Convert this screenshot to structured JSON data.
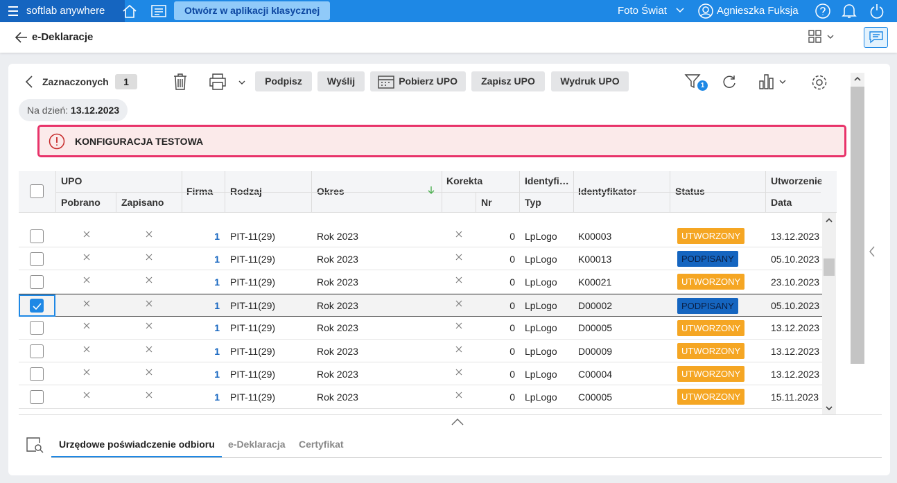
{
  "topbar": {
    "app_name": "softlab anywhere",
    "open_button": "Otwórz w aplikacji klasycznej",
    "company": "Foto Świat",
    "user": "Agnieszka Fuksja"
  },
  "subheader": {
    "title": "e-Deklaracje"
  },
  "toolbar": {
    "selected_label": "Zaznaczonych",
    "selected_count": "1",
    "buttons": [
      "Podpisz",
      "Wyślij",
      "Pobierz UPO",
      "Zapisz UPO",
      "Wydruk UPO"
    ],
    "filter_badge": "1"
  },
  "date_chip": {
    "label": "Na dzień:",
    "value": "13.12.2023"
  },
  "alert": {
    "text": "KONFIGURACJA TESTOWA"
  },
  "table": {
    "headers": {
      "upo": "UPO",
      "pobrano": "Pobrano",
      "zapisano": "Zapisano",
      "firma": "Firma",
      "rodzaj": "Rodzaj",
      "okres": "Okres",
      "korekta": "Korekta",
      "nr": "Nr",
      "identyfi": "Identyfi…",
      "typ": "Typ",
      "identyfikator": "Identyfikator",
      "status": "Status",
      "utworzenie": "Utworzenie",
      "data": "Data"
    },
    "rows": [
      {
        "firma": "1",
        "rodzaj": "PIT-11(29)",
        "okres": "Rok 2023",
        "nr": "0",
        "typ": "LpLogo",
        "identyfikator": "K00003",
        "status": "UTWORZONY",
        "status_color": "#f5a623",
        "data": "13.12.2023",
        "selected": false
      },
      {
        "firma": "1",
        "rodzaj": "PIT-11(29)",
        "okres": "Rok 2023",
        "nr": "0",
        "typ": "LpLogo",
        "identyfikator": "K00013",
        "status": "PODPISANY",
        "status_color": "#1565c0",
        "data": "05.10.2023",
        "selected": false
      },
      {
        "firma": "1",
        "rodzaj": "PIT-11(29)",
        "okres": "Rok 2023",
        "nr": "0",
        "typ": "LpLogo",
        "identyfikator": "K00021",
        "status": "UTWORZONY",
        "status_color": "#f5a623",
        "data": "23.10.2023",
        "selected": false
      },
      {
        "firma": "1",
        "rodzaj": "PIT-11(29)",
        "okres": "Rok 2023",
        "nr": "0",
        "typ": "LpLogo",
        "identyfikator": "D00002",
        "status": "PODPISANY",
        "status_color": "#1565c0",
        "data": "05.10.2023",
        "selected": true
      },
      {
        "firma": "1",
        "rodzaj": "PIT-11(29)",
        "okres": "Rok 2023",
        "nr": "0",
        "typ": "LpLogo",
        "identyfikator": "D00005",
        "status": "UTWORZONY",
        "status_color": "#f5a623",
        "data": "13.12.2023",
        "selected": false
      },
      {
        "firma": "1",
        "rodzaj": "PIT-11(29)",
        "okres": "Rok 2023",
        "nr": "0",
        "typ": "LpLogo",
        "identyfikator": "D00009",
        "status": "UTWORZONY",
        "status_color": "#f5a623",
        "data": "13.12.2023",
        "selected": false
      },
      {
        "firma": "1",
        "rodzaj": "PIT-11(29)",
        "okres": "Rok 2023",
        "nr": "0",
        "typ": "LpLogo",
        "identyfikator": "C00004",
        "status": "UTWORZONY",
        "status_color": "#f5a623",
        "data": "13.12.2023",
        "selected": false
      },
      {
        "firma": "1",
        "rodzaj": "PIT-11(29)",
        "okres": "Rok 2023",
        "nr": "0",
        "typ": "LpLogo",
        "identyfikator": "C00005",
        "status": "UTWORZONY",
        "status_color": "#f5a623",
        "data": "15.11.2023",
        "selected": false
      }
    ]
  },
  "tabs": {
    "items": [
      "Urzędowe poświadczenie odbioru",
      "e-Deklaracja",
      "Certyfikat"
    ],
    "active": 0
  }
}
